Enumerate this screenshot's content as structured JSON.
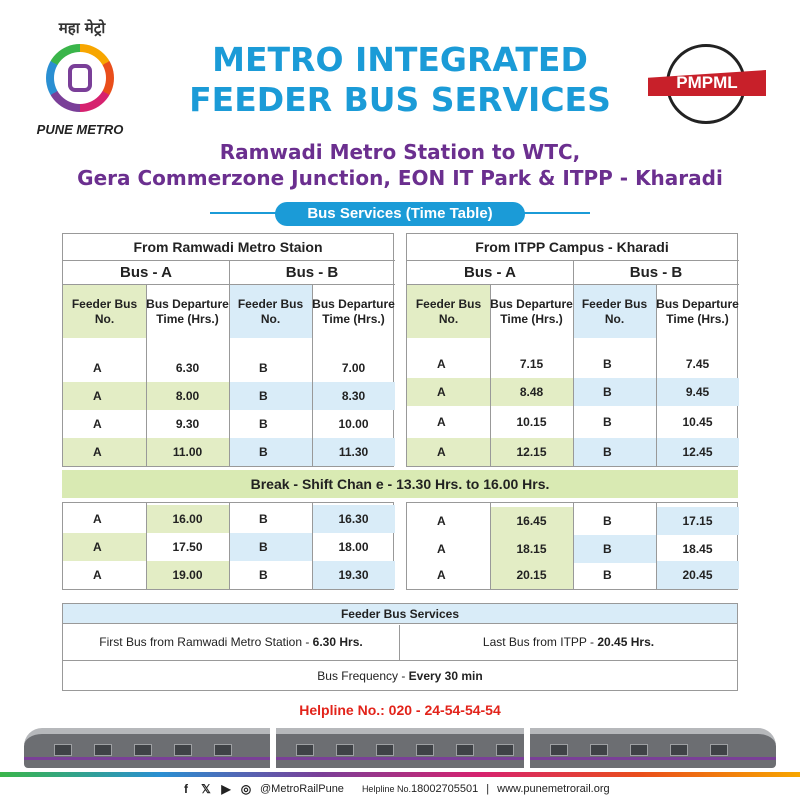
{
  "header": {
    "logo_left_hindi": "महा मेट्रो",
    "logo_left_name": "PUNE METRO",
    "title_line1": "METRO INTEGRATED",
    "title_line2": "FEEDER BUS SERVICES",
    "logo_right_name": "PMPML",
    "route_line1": "Ramwadi Metro Station to WTC,",
    "route_line2": "Gera Commerzone Junction, EON IT Park & ITPP -  Kharadi",
    "ribbon": "Bus Services (Time Table)"
  },
  "left_table": {
    "title": "From Ramwadi Metro Staion",
    "bus_a": "Bus - A",
    "bus_b": "Bus -  B",
    "col_no": "Feeder Bus No.",
    "col_time": "Bus Departure Time (Hrs.)",
    "rows": [
      {
        "a": "A",
        "at": "6.30",
        "b": "B",
        "bt": "7.00"
      },
      {
        "a": "A",
        "at": "8.00",
        "b": "B",
        "bt": "8.30"
      },
      {
        "a": "A",
        "at": "9.30",
        "b": "B",
        "bt": "10.00"
      },
      {
        "a": "A",
        "at": "11.00",
        "b": "B",
        "bt": "11.30"
      }
    ],
    "rows_after": [
      {
        "a": "A",
        "at": "16.00",
        "b": "B",
        "bt": "16.30"
      },
      {
        "a": "A",
        "at": "17.50",
        "b": "B",
        "bt": "18.00"
      },
      {
        "a": "A",
        "at": "19.00",
        "b": "B",
        "bt": "19.30"
      }
    ]
  },
  "right_table": {
    "title": "From ITPP Campus - Kharadi",
    "bus_a": "Bus - A",
    "bus_b": "Bus - B",
    "col_no": "Feeder Bus No.",
    "col_time": "Bus Departure Time (Hrs.)",
    "rows": [
      {
        "a": "A",
        "at": "7.15",
        "b": "B",
        "bt": "7.45"
      },
      {
        "a": "A",
        "at": "8.48",
        "b": "B",
        "bt": "9.45"
      },
      {
        "a": "A",
        "at": "10.15",
        "b": "B",
        "bt": "10.45"
      },
      {
        "a": "A",
        "at": "12.15",
        "b": "B",
        "bt": "12.45"
      }
    ],
    "rows_after": [
      {
        "a": "A",
        "at": "16.45",
        "b": "B",
        "bt": "17.15"
      },
      {
        "a": "A",
        "at": "18.15",
        "b": "B",
        "bt": "18.45"
      },
      {
        "a": "A",
        "at": "20.15",
        "b": "B",
        "bt": "20.45"
      }
    ]
  },
  "break_text": "Break - Shift Chan  e - 13.30 Hrs. to 16.00 Hrs.",
  "feeder": {
    "title": "Feeder Bus Services",
    "first_label": "First Bus from Ramwadi Metro Station - ",
    "first_value": "6.30 Hrs.",
    "last_label": "Last Bus from ITPP - ",
    "last_value": "20.45 Hrs.",
    "freq_label": "Bus Frequency - ",
    "freq_value": "Every 30 min"
  },
  "helpline": "Helpline No.: 020 - 24-54-54-54",
  "footer": {
    "social_handle": "@MetroRailPune",
    "helpline_label": "Helpline No.",
    "helpline_number": "18002705501",
    "separator": "|",
    "website": "www.punemetrorail.org",
    "icons": [
      "facebook-icon",
      "x-icon",
      "youtube-icon",
      "instagram-icon"
    ]
  },
  "colors": {
    "title_blue": "#1b9bd7",
    "route_purple": "#6b2f8f",
    "green_fill": "#e3edc5",
    "blue_fill": "#d9ecf8",
    "helpline_red": "#e2231a"
  }
}
